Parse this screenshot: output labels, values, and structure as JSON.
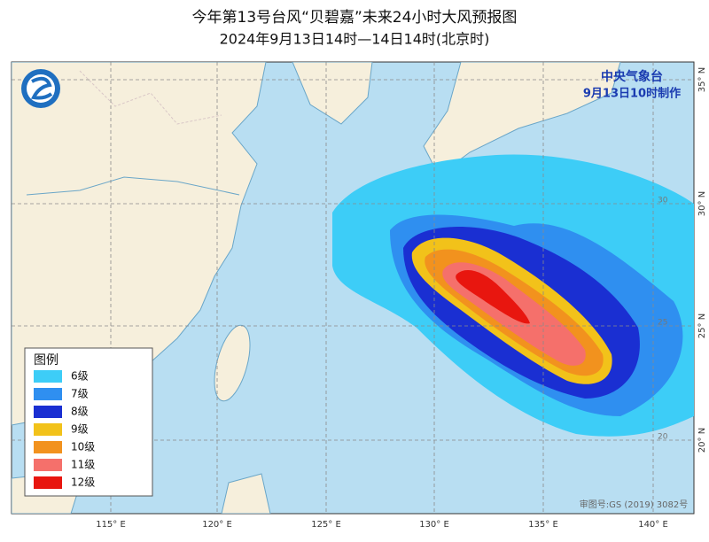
{
  "header": {
    "title": "今年第13号台风“贝碧嘉”未来24小时大风预报图",
    "subtitle": "2024年9月13日14时—14日14时(北京时)"
  },
  "issuer": {
    "name": "中央气象台",
    "time": "9月13日10时制作"
  },
  "legend": {
    "title": "图例",
    "items": [
      {
        "label": "6级",
        "color": "#3dcdf7"
      },
      {
        "label": "7级",
        "color": "#2f8ff0"
      },
      {
        "label": "8级",
        "color": "#1a2fd2"
      },
      {
        "label": "9级",
        "color": "#f2c21a"
      },
      {
        "label": "10级",
        "color": "#f2921e"
      },
      {
        "label": "11级",
        "color": "#f5706b"
      },
      {
        "label": "12级",
        "color": "#e8160f"
      }
    ]
  },
  "axes": {
    "longitudes": [
      "115° E",
      "120° E",
      "125° E",
      "130° E",
      "135° E",
      "140° E"
    ],
    "latitudes": [
      "35° N",
      "30° N",
      "25° N",
      "20° N"
    ],
    "inner_latitudes": [
      "30",
      "25",
      "20"
    ]
  },
  "footer": {
    "approval": "审图号:GS (2019) 3082号"
  }
}
